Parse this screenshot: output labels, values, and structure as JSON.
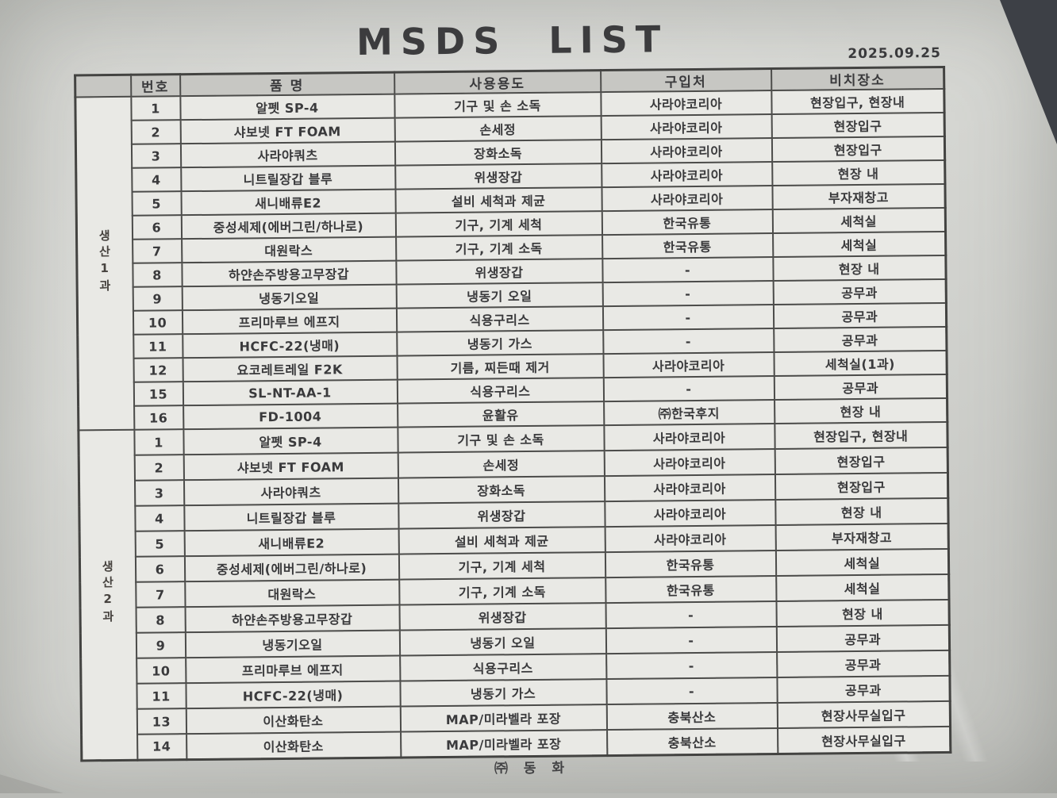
{
  "title": "MSDS LIST",
  "date": "2025.09.25",
  "footer": "㈜ 동  화",
  "colors": {
    "section1_bg": "#dfae8f",
    "section2_bg": "#b0bf82",
    "header_bg": "#c7c7c3",
    "cell_bg": "#e9e9e5",
    "border": "#4c4c4a",
    "text": "#3a3a3c",
    "photo_corner": "#3d4046"
  },
  "table": {
    "headers": [
      "번호",
      "품   명",
      "사용용도",
      "구입처",
      "비치장소"
    ],
    "sections": [
      {
        "label": "생산1과",
        "rows": [
          {
            "no": "1",
            "name": "알펫 SP-4",
            "use": "기구 및 손 소독",
            "vendor": "사라야코리아",
            "location": "현장입구, 현장내"
          },
          {
            "no": "2",
            "name": "샤보넷 FT FOAM",
            "use": "손세정",
            "vendor": "사라야코리아",
            "location": "현장입구"
          },
          {
            "no": "3",
            "name": "사라야쿼츠",
            "use": "장화소독",
            "vendor": "사라야코리아",
            "location": "현장입구"
          },
          {
            "no": "4",
            "name": "니트릴장갑 블루",
            "use": "위생장갑",
            "vendor": "사라야코리아",
            "location": "현장 내"
          },
          {
            "no": "5",
            "name": "새니배류E2",
            "use": "설비 세척과 제균",
            "vendor": "사라야코리아",
            "location": "부자재창고"
          },
          {
            "no": "6",
            "name": "중성세제(에버그린/하나로)",
            "use": "기구, 기계 세척",
            "vendor": "한국유통",
            "location": "세척실"
          },
          {
            "no": "7",
            "name": "대원락스",
            "use": "기구, 기계 소독",
            "vendor": "한국유통",
            "location": "세척실"
          },
          {
            "no": "8",
            "name": "하얀손주방용고무장갑",
            "use": "위생장갑",
            "vendor": "-",
            "location": "현장 내"
          },
          {
            "no": "9",
            "name": "냉동기오일",
            "use": "냉동기 오일",
            "vendor": "-",
            "location": "공무과"
          },
          {
            "no": "10",
            "name": "프리마루브 에프지",
            "use": "식용구리스",
            "vendor": "-",
            "location": "공무과"
          },
          {
            "no": "11",
            "name": "HCFC-22(냉매)",
            "use": "냉동기 가스",
            "vendor": "-",
            "location": "공무과"
          },
          {
            "no": "12",
            "name": "요코레트레일 F2K",
            "use": "기름, 찌든때 제거",
            "vendor": "사라야코리아",
            "location": "세척실(1과)"
          },
          {
            "no": "15",
            "name": "SL-NT-AA-1",
            "use": "식용구리스",
            "vendor": "-",
            "location": "공무과"
          },
          {
            "no": "16",
            "name": "FD-1004",
            "use": "윤활유",
            "vendor": "㈜한국후지",
            "location": "현장 내"
          }
        ]
      },
      {
        "label": "생산2과",
        "rows": [
          {
            "no": "1",
            "name": "알펫 SP-4",
            "use": "기구 및 손 소독",
            "vendor": "사라야코리아",
            "location": "현장입구, 현장내"
          },
          {
            "no": "2",
            "name": "샤보넷 FT FOAM",
            "use": "손세정",
            "vendor": "사라야코리아",
            "location": "현장입구"
          },
          {
            "no": "3",
            "name": "사라야쿼츠",
            "use": "장화소독",
            "vendor": "사라야코리아",
            "location": "현장입구"
          },
          {
            "no": "4",
            "name": "니트릴장갑 블루",
            "use": "위생장갑",
            "vendor": "사라야코리아",
            "location": "현장 내"
          },
          {
            "no": "5",
            "name": "새니배류E2",
            "use": "설비 세척과 제균",
            "vendor": "사라야코리아",
            "location": "부자재창고"
          },
          {
            "no": "6",
            "name": "중성세제(에버그린/하나로)",
            "use": "기구, 기계 세척",
            "vendor": "한국유통",
            "location": "세척실"
          },
          {
            "no": "7",
            "name": "대원락스",
            "use": "기구, 기계 소독",
            "vendor": "한국유통",
            "location": "세척실"
          },
          {
            "no": "8",
            "name": "하얀손주방용고무장갑",
            "use": "위생장갑",
            "vendor": "-",
            "location": "현장 내"
          },
          {
            "no": "9",
            "name": "냉동기오일",
            "use": "냉동기 오일",
            "vendor": "-",
            "location": "공무과"
          },
          {
            "no": "10",
            "name": "프리마루브 에프지",
            "use": "식용구리스",
            "vendor": "-",
            "location": "공무과"
          },
          {
            "no": "11",
            "name": "HCFC-22(냉매)",
            "use": "냉동기 가스",
            "vendor": "-",
            "location": "공무과"
          },
          {
            "no": "13",
            "name": "이산화탄소",
            "use": "MAP/미라벨라 포장",
            "vendor": "충북산소",
            "location": "현장사무실입구"
          },
          {
            "no": "14",
            "name": "이산화탄소",
            "use": "MAP/미라벨라 포장",
            "vendor": "충북산소",
            "location": "현장사무실입구"
          }
        ]
      }
    ]
  }
}
